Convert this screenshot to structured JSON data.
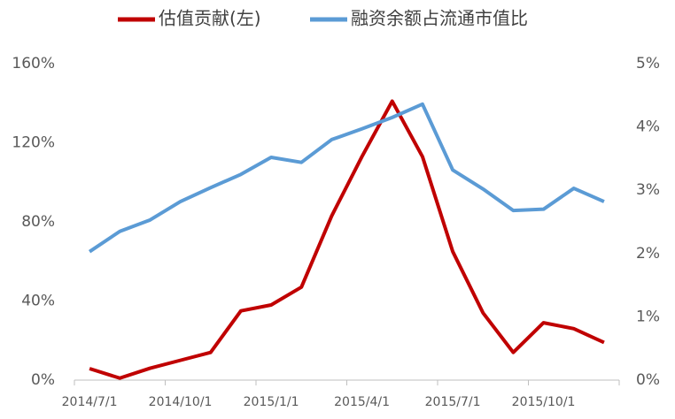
{
  "chart_data": {
    "type": "line",
    "categories": [
      "2014/7/1",
      null,
      null,
      "2014/10/1",
      null,
      null,
      "2015/1/1",
      null,
      null,
      "2015/4/1",
      null,
      null,
      "2015/7/1",
      null,
      null,
      "2015/10/1",
      null,
      null
    ],
    "series": [
      {
        "name": "估值贡献(左)",
        "color": "#c00000",
        "values": [
          5.8,
          1,
          6,
          10,
          14,
          35,
          38,
          47,
          83,
          113,
          141,
          113,
          65,
          34,
          14,
          29,
          26,
          19
        ]
      },
      {
        "name": "融资余额占流通市值比",
        "color": "#5b9bd5",
        "axis": "y2",
        "values": [
          2.03,
          2.35,
          2.53,
          2.82,
          3.04,
          3.25,
          3.52,
          3.44,
          3.8,
          3.97,
          4.15,
          4.36,
          3.32,
          3.02,
          2.68,
          2.7,
          3.03,
          2.82
        ]
      }
    ],
    "ylim": [
      0,
      160
    ],
    "yticks": [
      {
        "value": 0,
        "label": "0%"
      },
      {
        "value": 40,
        "label": "40%"
      },
      {
        "value": 80,
        "label": "80%"
      },
      {
        "value": 120,
        "label": "120%"
      },
      {
        "value": 160,
        "label": "160%"
      }
    ],
    "y2lim": [
      0,
      5
    ],
    "y2ticks": [
      {
        "value": 0,
        "label": "0%"
      },
      {
        "value": 1,
        "label": "1%"
      },
      {
        "value": 2,
        "label": "2%"
      },
      {
        "value": 3,
        "label": "3%"
      },
      {
        "value": 4,
        "label": "4%"
      },
      {
        "value": 5,
        "label": "5%"
      }
    ],
    "grid": false,
    "legend": "top"
  }
}
